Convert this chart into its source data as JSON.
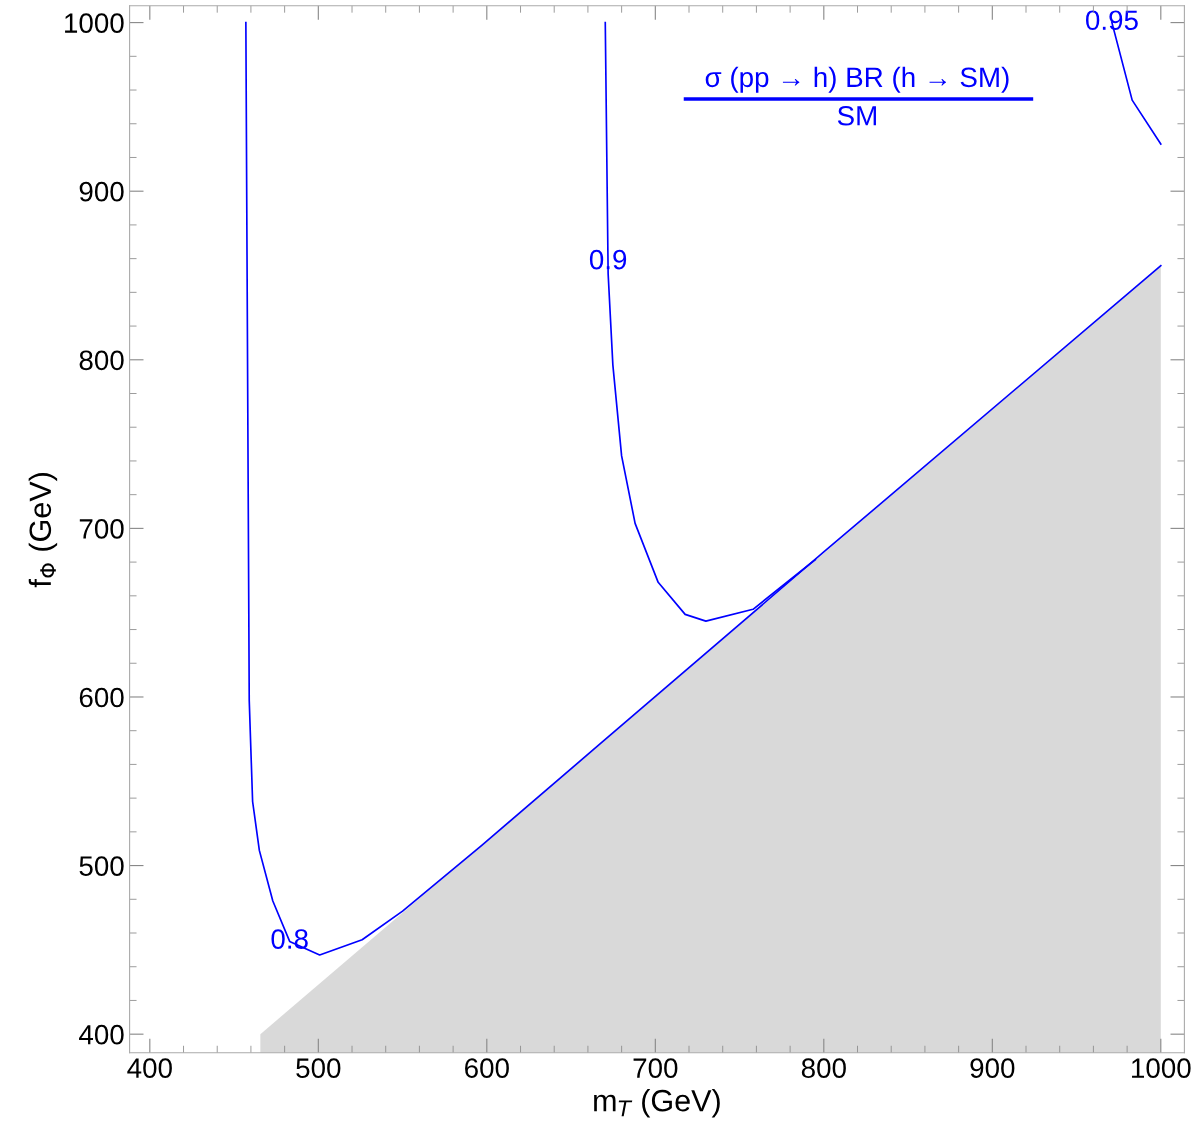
{
  "chart_data": {
    "type": "line",
    "xlabel": "m$_{T}$ (GeV)",
    "ylabel": "f$_{Φ}$ (GeV)",
    "annotations": [
      "σ (pp → h) BR (h → SM)",
      "SM",
      {
        "text": "0.8",
        "x": 483,
        "y": 455
      },
      {
        "text": "0.9",
        "x": 672,
        "y": 858
      },
      {
        "text": "0.95",
        "x": 971,
        "y": 1000
      }
    ],
    "xlim": [
      388,
      1014
    ],
    "ylim": [
      389,
      1010
    ],
    "xticks": [
      400,
      500,
      600,
      700,
      800,
      900,
      1000
    ],
    "yticks": [
      400,
      500,
      600,
      700,
      800,
      900,
      1000
    ],
    "grid": false,
    "legend": false,
    "marker": "none",
    "line_style": "solid",
    "series": [
      {
        "type": "area",
        "color": "#d9d9d9",
        "x": [
          465.6,
          1000
        ],
        "values": [
          400,
          855.8
        ]
      },
      {
        "color": "#0000ff",
        "x": [
          457,
          459,
          461,
          465,
          473,
          483,
          500.8,
          526,
          550,
          597,
          667,
          800,
          1000
        ],
        "values": [
          1000,
          598,
          538,
          509,
          479,
          455,
          447,
          456,
          473,
          512,
          572,
          686,
          855.8
        ]
      },
      {
        "color": "#0000ff",
        "x": [
          670.3,
          672,
          674.8,
          680,
          688,
          701.7,
          717.7,
          730,
          758,
          790.6,
          795
        ],
        "values": [
          1000,
          851,
          797,
          743,
          703,
          668,
          649,
          645,
          652,
          678,
          681.5
        ]
      },
      {
        "color": "#0000ff",
        "x": [
          971,
          983,
          1000
        ],
        "values": [
          1000,
          954,
          928
        ]
      }
    ]
  }
}
